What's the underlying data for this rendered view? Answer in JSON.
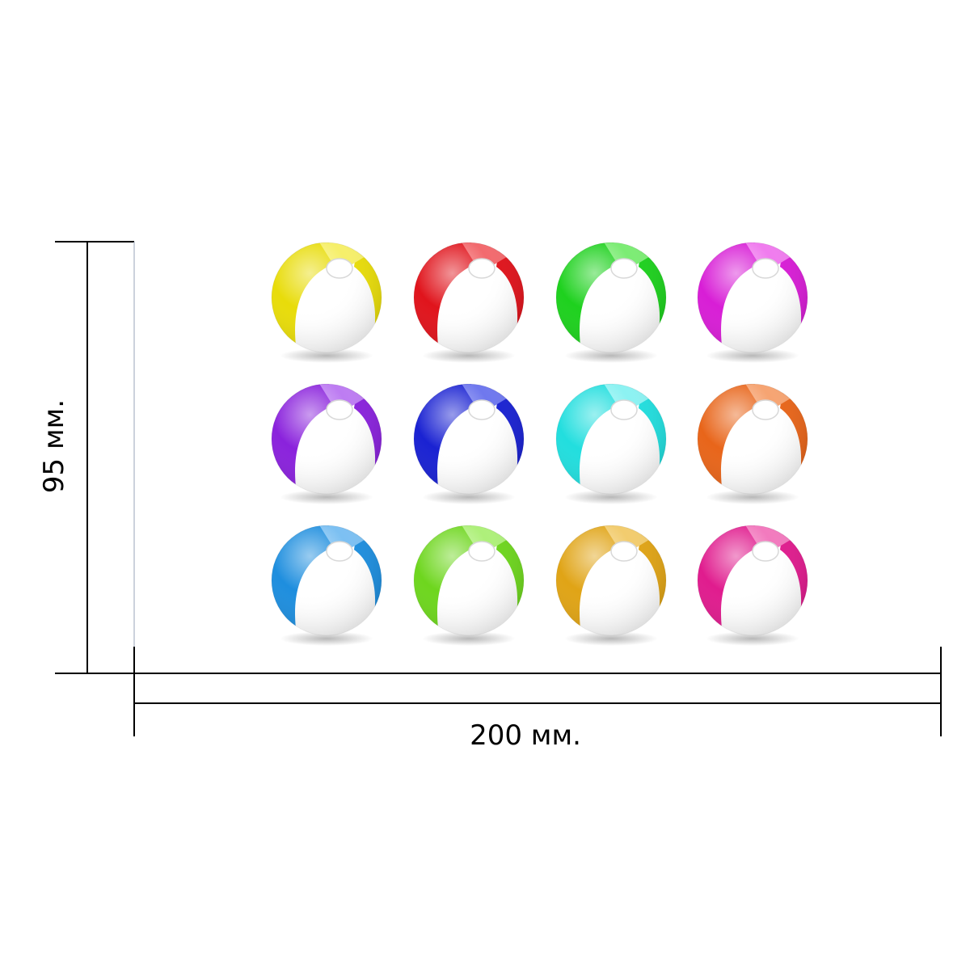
{
  "dimensions": {
    "width_label": "200 мм.",
    "height_label": "95 мм."
  },
  "balls": [
    {
      "color": "#e8dc0a",
      "light": "#f6ef6a"
    },
    {
      "color": "#e0141c",
      "light": "#f26a6e"
    },
    {
      "color": "#1ed11e",
      "light": "#7cec74"
    },
    {
      "color": "#d81ed6",
      "light": "#f07cee"
    },
    {
      "color": "#8a22dc",
      "light": "#bd7cf2"
    },
    {
      "color": "#1a22d2",
      "light": "#6f78ee"
    },
    {
      "color": "#22dede",
      "light": "#8cf2f2"
    },
    {
      "color": "#e8651a",
      "light": "#f6a472"
    },
    {
      "color": "#1e8ede",
      "light": "#7cc0f2"
    },
    {
      "color": "#6ed61e",
      "light": "#aef07a"
    },
    {
      "color": "#e0a416",
      "light": "#f2cc6e"
    },
    {
      "color": "#e01c8e",
      "light": "#f27abe"
    }
  ]
}
